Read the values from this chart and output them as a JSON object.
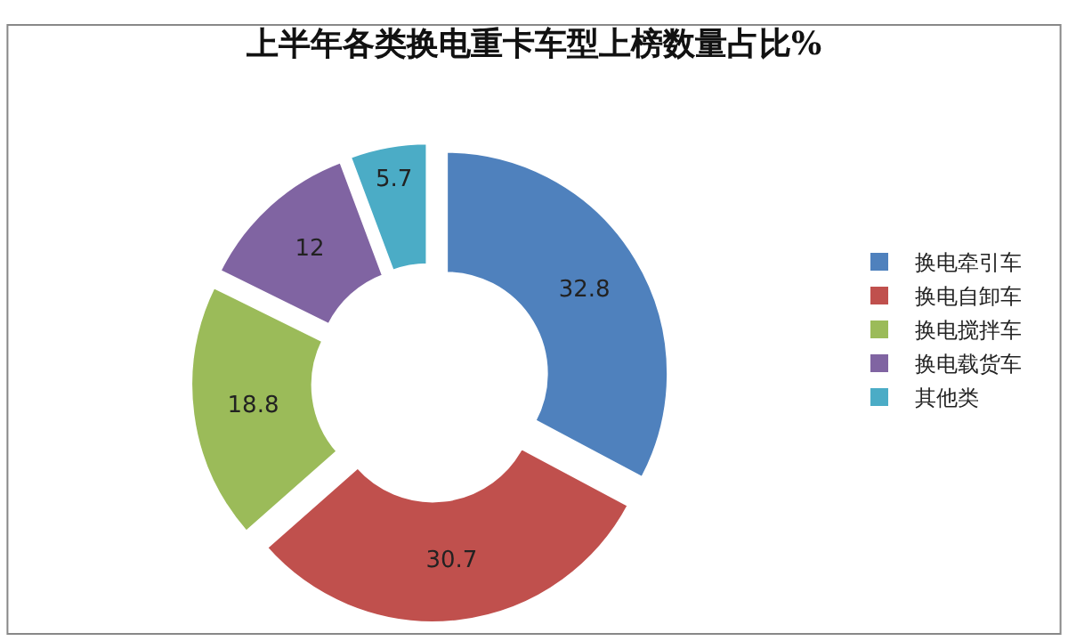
{
  "chart_data": {
    "type": "donut",
    "title": "上半年各类换电重卡车型上榜数量占比%",
    "categories": [
      "换电牵引车",
      "换电自卸车",
      "换电搅拌车",
      "换电载货车",
      "其他类"
    ],
    "values": [
      32.8,
      30.7,
      18.8,
      12,
      5.7
    ],
    "colors": [
      "#4f81bd",
      "#c0504d",
      "#9bbb59",
      "#8064a2",
      "#4bacc6"
    ],
    "data_labels": true,
    "legend": "right"
  }
}
